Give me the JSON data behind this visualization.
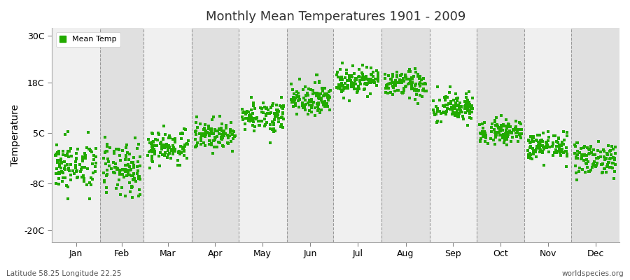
{
  "title": "Monthly Mean Temperatures 1901 - 2009",
  "ylabel": "Temperature",
  "legend_label": "Mean Temp",
  "dot_color": "#22aa00",
  "background_color": "#f0f0f0",
  "alt_background_color": "#e0e0e0",
  "fig_background": "#ffffff",
  "yticks": [
    -20,
    -8,
    5,
    18,
    30
  ],
  "ytick_labels": [
    "-20C",
    "-8C",
    "5C",
    "18C",
    "30C"
  ],
  "ylim": [
    -23,
    32
  ],
  "months": [
    "Jan",
    "Feb",
    "Mar",
    "Apr",
    "May",
    "Jun",
    "Jul",
    "Aug",
    "Sep",
    "Oct",
    "Nov",
    "Dec"
  ],
  "bottom_left": "Latitude 58.25 Longitude 22.25",
  "bottom_right": "worldspecies.org",
  "monthly_means": [
    -3.5,
    -4.5,
    1.5,
    4.5,
    9.5,
    14.0,
    18.5,
    17.5,
    11.5,
    5.5,
    1.5,
    -1.5
  ],
  "monthly_stds": [
    3.2,
    3.5,
    2.2,
    1.8,
    2.0,
    2.0,
    1.8,
    1.8,
    2.0,
    1.5,
    1.8,
    2.2
  ]
}
